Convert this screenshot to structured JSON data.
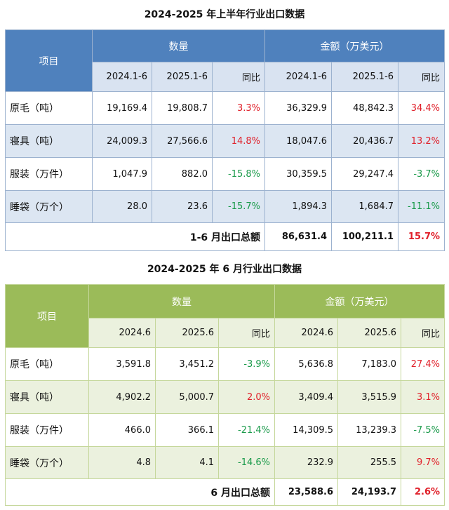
{
  "table1": {
    "title": "2024-2025 年上半年行业出口数据",
    "item_header": "项目",
    "qty_header": "数量",
    "amt_header": "金额（万美元）",
    "sub_headers": [
      "2024.1-6",
      "2025.1-6",
      "同比",
      "2024.1-6",
      "2025.1-6",
      "同比"
    ],
    "rows": [
      {
        "label": "原毛（吨）",
        "cells": [
          "19,169.4",
          "19,808.7",
          "3.3%",
          "36,329.9",
          "48,842.3",
          "34.4%"
        ]
      },
      {
        "label": "寝具（吨）",
        "cells": [
          "24,009.3",
          "27,566.6",
          "14.8%",
          "18,047.6",
          "20,436.7",
          "13.2%"
        ]
      },
      {
        "label": "服装（万件）",
        "cells": [
          "1,047.9",
          "882.0",
          "-15.8%",
          "30,359.5",
          "29,247.4",
          "-3.7%"
        ]
      },
      {
        "label": "睡袋（万个）",
        "cells": [
          "28.0",
          "23.6",
          "-15.7%",
          "1,894.3",
          "1,684.7",
          "-11.1%"
        ]
      }
    ],
    "total_label": "1-6 月出口总额",
    "total_cells": [
      "86,631.4",
      "100,211.1",
      "15.7%"
    ]
  },
  "table2": {
    "title": "2024-2025 年 6 月行业出口数据",
    "item_header": "项目",
    "qty_header": "数量",
    "amt_header": "金额（万美元）",
    "sub_headers": [
      "2024.6",
      "2025.6",
      "同比",
      "2024.6",
      "2025.6",
      "同比"
    ],
    "rows": [
      {
        "label": "原毛（吨）",
        "cells": [
          "3,591.8",
          "3,451.2",
          "-3.9%",
          "5,636.8",
          "7,183.0",
          "27.4%"
        ]
      },
      {
        "label": "寝具（吨）",
        "cells": [
          "4,902.2",
          "5,000.7",
          "2.0%",
          "3,409.4",
          "3,515.9",
          "3.1%"
        ]
      },
      {
        "label": "服装（万件）",
        "cells": [
          "466.0",
          "366.1",
          "-21.4%",
          "14,309.5",
          "13,239.3",
          "-7.5%"
        ]
      },
      {
        "label": "睡袋（万个）",
        "cells": [
          "4.8",
          "4.1",
          "-14.6%",
          "232.9",
          "255.5",
          "9.7%"
        ]
      }
    ],
    "total_label": "6 月出口总额",
    "total_cells": [
      "23,588.6",
      "24,193.7",
      "2.6%"
    ]
  },
  "colors": {
    "positive": "#e0202a",
    "negative": "#1a9a4a",
    "table1_header": "#4f81bd",
    "table2_header": "#9bbb59"
  }
}
